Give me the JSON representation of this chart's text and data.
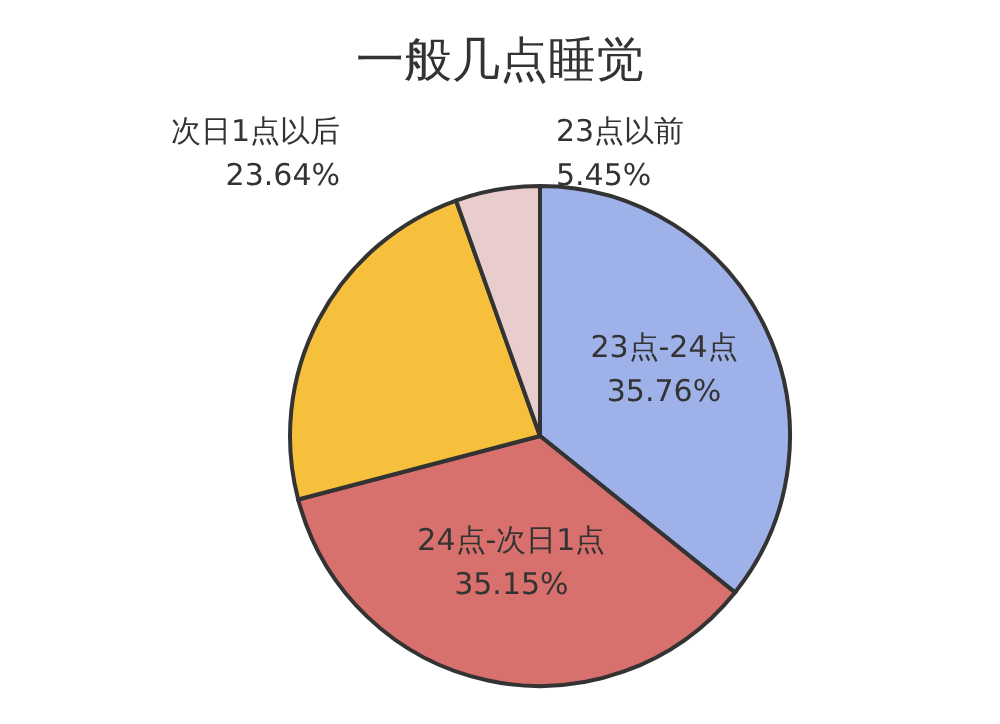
{
  "chart_data": {
    "type": "pie",
    "title": "一般几点睡觉",
    "categories": [
      "23点-24点",
      "24点-次日1点",
      "次日1点以后",
      "23点以前"
    ],
    "values": [
      35.76,
      35.15,
      23.64,
      5.45
    ],
    "value_labels": [
      "35.76%",
      "35.15%",
      "23.64%",
      "5.45%"
    ],
    "colors": [
      "#9fb1e9",
      "#d8706d",
      "#f6c03c",
      "#e9cccc"
    ]
  }
}
